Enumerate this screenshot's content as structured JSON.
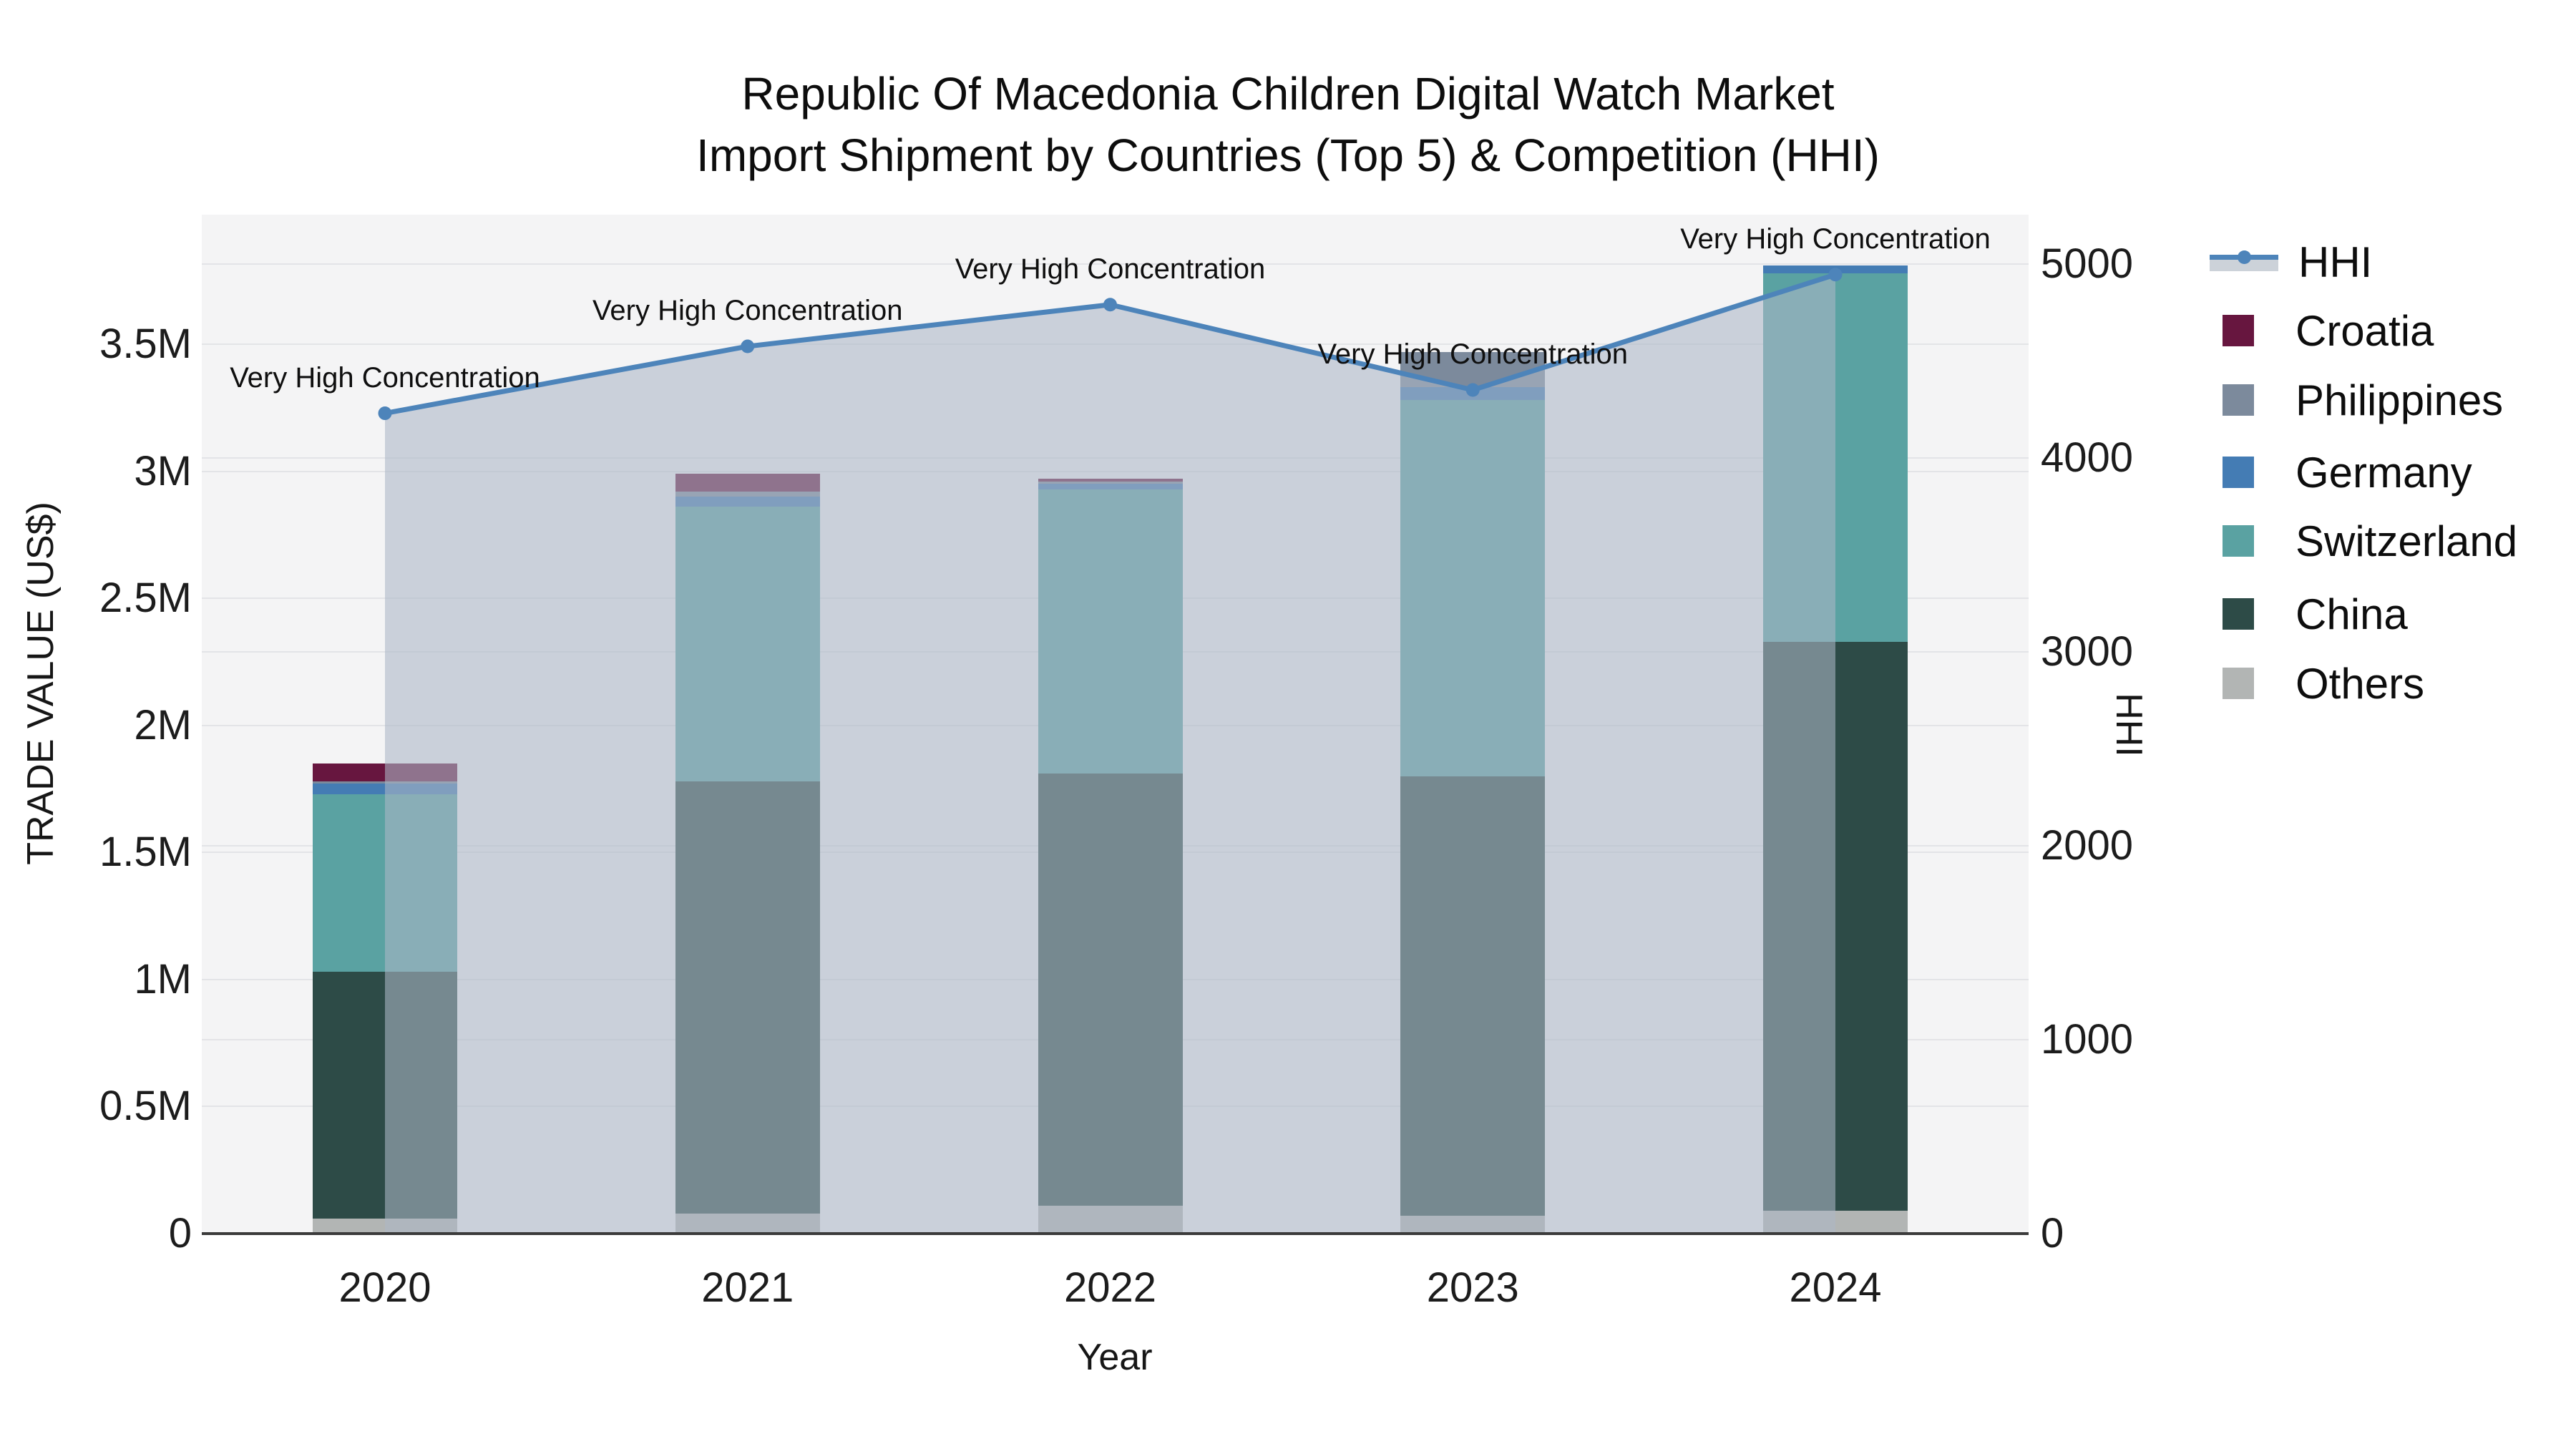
{
  "title": {
    "line1": "Republic Of Macedonia Children Digital Watch Market",
    "line2": "Import Shipment by Countries (Top 5) & Competition (HHI)"
  },
  "axes": {
    "x": {
      "title": "Year",
      "tick_labels": [
        "2020",
        "2021",
        "2022",
        "2023",
        "2024"
      ]
    },
    "y_left": {
      "title": "TRADE VALUE (US$)",
      "tick_labels": [
        "0",
        "0.5M",
        "1M",
        "1.5M",
        "2M",
        "2.5M",
        "3M",
        "3.5M"
      ],
      "tick_values": [
        0,
        0.5,
        1,
        1.5,
        2,
        2.5,
        3,
        3.5
      ]
    },
    "y_right": {
      "title": "HHI",
      "tick_labels": [
        "0",
        "1000",
        "2000",
        "3000",
        "4000",
        "5000"
      ],
      "tick_values": [
        0,
        1000,
        2000,
        3000,
        4000,
        5000
      ]
    }
  },
  "legend": {
    "items": [
      {
        "label": "HHI",
        "type": "line",
        "color": "#4d84ba"
      },
      {
        "label": "Croatia",
        "type": "swatch",
        "color": "#67163f"
      },
      {
        "label": "Philippines",
        "type": "swatch",
        "color": "#7c8a9c"
      },
      {
        "label": "Germany",
        "type": "swatch",
        "color": "#447cb4"
      },
      {
        "label": "Switzerland",
        "type": "swatch",
        "color": "#5aa2a2"
      },
      {
        "label": "China",
        "type": "swatch",
        "color": "#2d4b47"
      },
      {
        "label": "Others",
        "type": "swatch",
        "color": "#b2b5b4"
      }
    ]
  },
  "colors": {
    "plot_background": "#f4f4f5",
    "gridline": "#e3e4e7",
    "axis_line": "#3b3b3b",
    "hhi_line": "#4d84ba",
    "hhi_area_fill": "rgba(172,183,198,0.58)"
  },
  "chart_data": {
    "type": "bar+line",
    "categories": [
      2020,
      2021,
      2022,
      2023,
      2024
    ],
    "unit": "million US$",
    "xlabel": "Year",
    "ylabel_left": "TRADE VALUE (US$)",
    "ylabel_right": "HHI",
    "y_left_axis_range": [
      0,
      4.01
    ],
    "y_right_axis_range": [
      0,
      5254
    ],
    "grid": true,
    "legend_position": "right",
    "stack_order_bottom_to_top": [
      "Others",
      "China",
      "Switzerland",
      "Germany",
      "Philippines",
      "Croatia"
    ],
    "series": [
      {
        "name": "Others",
        "color": "#b2b5b4",
        "values": [
          0.06,
          0.08,
          0.11,
          0.07,
          0.09
        ]
      },
      {
        "name": "China",
        "color": "#2d4b47",
        "values": [
          0.97,
          1.7,
          1.7,
          1.73,
          2.24
        ]
      },
      {
        "name": "Switzerland",
        "color": "#5aa2a2",
        "values": [
          0.7,
          1.08,
          1.12,
          1.48,
          1.45
        ]
      },
      {
        "name": "Germany",
        "color": "#447cb4",
        "values": [
          0.04,
          0.04,
          0.02,
          0.05,
          0.03
        ]
      },
      {
        "name": "Philippines",
        "color": "#7c8a9c",
        "values": [
          0.01,
          0.02,
          0.01,
          0.14,
          0.0
        ]
      },
      {
        "name": "Croatia",
        "color": "#67163f",
        "values": [
          0.07,
          0.07,
          0.01,
          0.0,
          0.0
        ]
      }
    ],
    "totals": [
      1.85,
      2.99,
      2.97,
      3.47,
      3.81
    ],
    "hhi_line": {
      "name": "HHI",
      "color": "#4d84ba",
      "area_fill": "rgba(172,183,198,0.58)",
      "values": [
        4230,
        4575,
        4790,
        4350,
        4945
      ],
      "annotations": [
        "Very High Concentration",
        "Very High Concentration",
        "Very High Concentration",
        "Very High Concentration",
        "Very High Concentration"
      ]
    }
  }
}
